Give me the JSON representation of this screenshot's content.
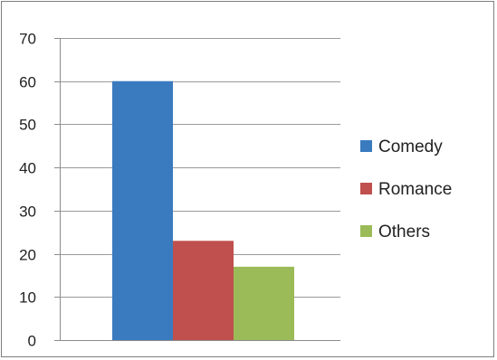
{
  "chart_data": {
    "type": "bar",
    "categories": [
      ""
    ],
    "series": [
      {
        "name": "Comedy",
        "values": [
          60
        ],
        "color": "#3a7bbf"
      },
      {
        "name": "Romance",
        "values": [
          23
        ],
        "color": "#c0504d"
      },
      {
        "name": "Others",
        "values": [
          17
        ],
        "color": "#9bbb59"
      }
    ],
    "title": "",
    "xlabel": "",
    "ylabel": "",
    "ylim": [
      0,
      70
    ],
    "yticks": [
      "0",
      "10",
      "20",
      "30",
      "40",
      "50",
      "60",
      "70"
    ],
    "grid": true,
    "legend_position": "right"
  }
}
